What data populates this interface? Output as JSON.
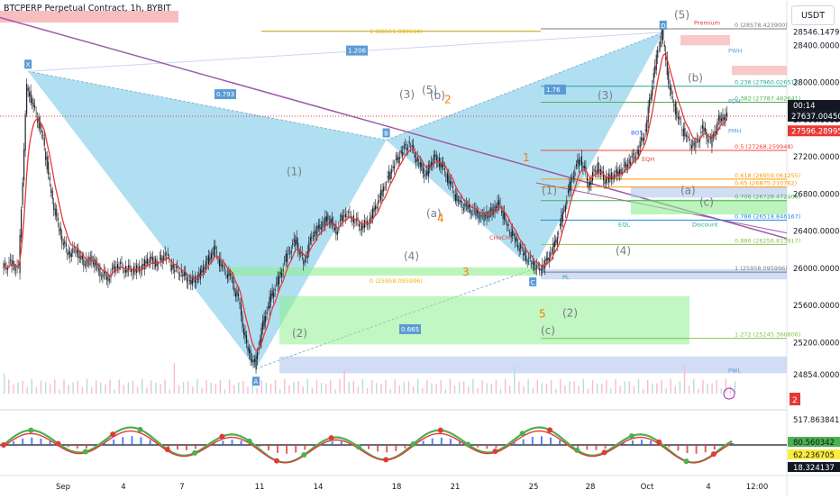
{
  "header": {
    "title": "BTCPERP Perpetual Contract, 1h, BYBIT",
    "currency": "USDT"
  },
  "price_scale": {
    "labels": [
      "28546.147950",
      "28400.000000",
      "28000.000000",
      "27600.000000",
      "27200.000000",
      "26800.000000",
      "26400.000000",
      "26000.000000",
      "25600.000000",
      "25200.000000",
      "24854.000000"
    ],
    "last_price": "27637.004500",
    "countdown": "00:14",
    "last_price_2": "27596.289951"
  },
  "time_axis": {
    "labels": [
      "Sep",
      "4",
      "7",
      "11",
      "14",
      "18",
      "21",
      "25",
      "28",
      "Oct",
      "4",
      "12:00"
    ]
  },
  "oscillator": {
    "labels": [
      "517.863841",
      "80.560342",
      "62.236705",
      "18.324137"
    ]
  },
  "annotations": {
    "elliott_left": [
      "(1)",
      "(2)",
      "(3)",
      "(4)",
      "(5)",
      "(a)",
      "(b)",
      "(c)"
    ],
    "elliott_right": [
      "(1)",
      "(2)",
      "(3)",
      "(4)",
      "(5)",
      "(a)",
      "(b)",
      "(c)"
    ],
    "points": [
      "X",
      "A",
      "B",
      "C",
      "D"
    ],
    "ratios": [
      "1.206",
      "0.793",
      "1.76",
      "0.665"
    ],
    "fib_right": [
      "0 (28578.423900)",
      "0.236 (27960.026515)",
      "0.382 (27787.462641)",
      "0.5 (27268.259948)",
      "0.618 (26959.061255)",
      "0.65 (26875.210762)",
      "0.706 (26728.472400)",
      "0.786 (26518.846167)",
      "0.886 (26256.813917)",
      "1 (25958.095996)",
      "1.272 (25245.366806)"
    ],
    "fib_mid": [
      "1 (28551.999514)",
      "0 (25958.095996)"
    ],
    "levels": [
      "PWH",
      "PDH",
      "PMH",
      "PWL",
      "Premium"
    ],
    "smc": [
      "BOS",
      "CHoCH",
      "EQH",
      "EQL",
      "Discount",
      "PL"
    ],
    "orange": [
      "1",
      "2",
      "3",
      "4",
      "5"
    ],
    "small_tag": "2"
  },
  "chart_data": {
    "type": "line",
    "title": "BTCPERP Perpetual Contract, 1h, BYBIT",
    "xlabel": "",
    "ylabel": "",
    "ylim": [
      24854,
      28578
    ],
    "x_ticks": [
      "Sep",
      "4",
      "7",
      "11",
      "14",
      "18",
      "21",
      "25",
      "28",
      "Oct",
      "4",
      "12:00"
    ],
    "series": [
      {
        "values": [
          26000,
          26050,
          25990,
          27950,
          27700,
          27400,
          26800,
          26400,
          26150,
          26200,
          26050,
          26100,
          25950,
          25900,
          26050,
          26000,
          25980,
          26000,
          26100,
          26050,
          26150,
          26000,
          25950,
          25850,
          25900,
          26050,
          26200,
          26000,
          25900,
          25650,
          25150,
          24950,
          25400,
          25700,
          25900,
          26150,
          26300,
          26050,
          26350,
          26450,
          26550,
          26400,
          26600,
          26550,
          26450,
          26500,
          26700,
          26900,
          27100,
          27250,
          27350,
          27150,
          27000,
          27200,
          27100,
          26900,
          26700,
          26650,
          26600,
          26550,
          26600,
          26700,
          26450,
          26300,
          26150,
          26050,
          25980,
          26100,
          26300,
          26650,
          27000,
          27200,
          26900,
          27100,
          26950,
          27000,
          27050,
          27150,
          27250,
          27500,
          28100,
          28560,
          27900,
          27600,
          27400,
          27300,
          27500,
          27350,
          27600,
          27637
        ]
      }
    ],
    "fib_levels": [
      {
        "ratio": "0",
        "value": 28578.4239
      },
      {
        "ratio": "0.236",
        "value": 27960.026515
      },
      {
        "ratio": "0.382",
        "value": 27787.462641
      },
      {
        "ratio": "0.5",
        "value": 27268.259948
      },
      {
        "ratio": "0.618",
        "value": 26959.061255
      },
      {
        "ratio": "0.65",
        "value": 26875.210762
      },
      {
        "ratio": "0.706",
        "value": 26728.4724
      },
      {
        "ratio": "0.786",
        "value": 26518.846167
      },
      {
        "ratio": "0.886",
        "value": 26256.813917
      },
      {
        "ratio": "1",
        "value": 25958.095996
      },
      {
        "ratio": "1.272",
        "value": 25245.366806
      }
    ],
    "colors": {
      "accent": "#2962ff",
      "candle": "#131722",
      "ma": "#e53935",
      "harmonic": "#87ceeb",
      "zone_green": "#90ee90",
      "zone_blue": "#b3c7ee",
      "last_price": "#131722",
      "pwh_line": "#c0392b"
    }
  }
}
